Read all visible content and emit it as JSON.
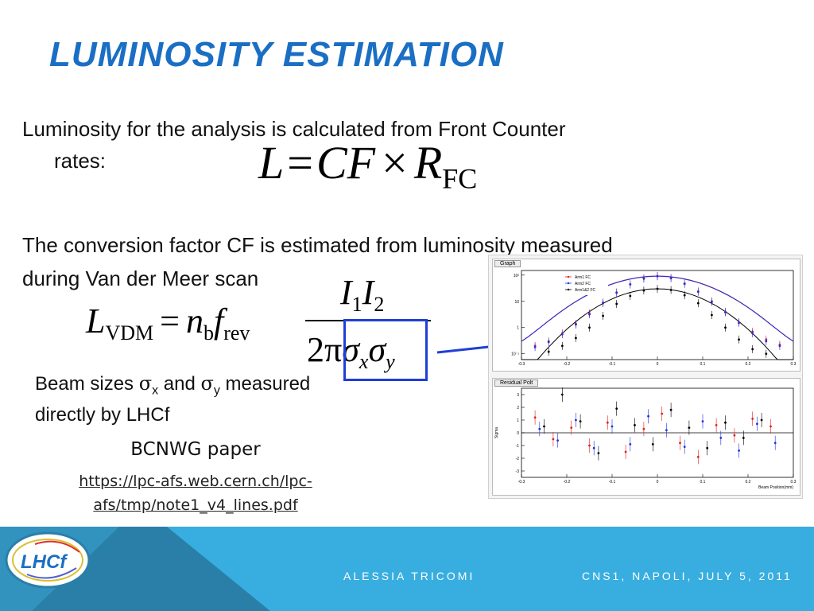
{
  "slide": {
    "title": "LUMINOSITY ESTIMATION",
    "paragraph1_line1": "Luminosity for the analysis is calculated from Front Counter",
    "paragraph1_line2": "rates:",
    "paragraph2_line1": "The conversion factor CF is estimated from luminosity measured",
    "paragraph2_line2": "during Van der Meer scan",
    "beam_sizes_prefix": "Beam sizes ",
    "beam_sizes_sigma_x": "σ",
    "beam_sizes_sub_x": "x",
    "beam_sizes_and": " and ",
    "beam_sizes_sigma_y": "σ",
    "beam_sizes_sub_y": "y",
    "beam_sizes_suffix": " measured",
    "beam_sizes_line2": "directly by LHCf",
    "reference_title": "BCNWG paper",
    "reference_link_line1": "https://lpc-afs.web.cern.ch/lpc-",
    "reference_link_line2": "afs/tmp/note1_v4_lines.pdf"
  },
  "formula1": {
    "L": "L",
    "equals": "=",
    "CF": "CF",
    "times": "×",
    "R": "R",
    "R_sub": "FC"
  },
  "formula2": {
    "L": "L",
    "L_sub": "VDM",
    "equals": "=",
    "n": "n",
    "n_sub": "b",
    "f": "f",
    "f_sub": "rev",
    "numerator_I1": "I",
    "numerator_sub1": "1",
    "numerator_I2": "I",
    "numerator_sub2": "2",
    "denominator_2pi": "2π",
    "sigma_x": "σ",
    "sigma_x_sub": "x",
    "sigma_y": "σ",
    "sigma_y_sub": "y"
  },
  "footer": {
    "author": "ALESSIA TRICOMI",
    "event": "CNS1, NAPOLI, JULY 5, 2011",
    "logo_text": "LHCf"
  },
  "colors": {
    "title": "#1a6fc4",
    "footer_band": "#38aee0",
    "footer_triangle_dark": "#2a7fa8",
    "highlight_box": "#1f3fd6",
    "arm1": "#e02020",
    "arm2": "#2030e0",
    "arm12": "#000000"
  },
  "chart_data": [
    {
      "type": "scatter",
      "title": "Graph",
      "legend": [
        "Arm1 FC",
        "Arm2 FC",
        "Arm1&2 FC"
      ],
      "legend_position": "top-left",
      "y_scale": "log",
      "x_ticks": [
        "-0.3",
        "-0.2",
        "-0.1",
        "0",
        "0.1",
        "0.2",
        "0.3"
      ],
      "y_ticks": [
        "10⁻¹",
        "1",
        "10",
        "10²"
      ],
      "xlim": [
        -0.3,
        0.3
      ],
      "ylim": [
        0.06,
        150
      ],
      "series": [
        {
          "name": "Arm1 FC",
          "color": "#e02020",
          "x": [
            -0.27,
            -0.24,
            -0.21,
            -0.18,
            -0.15,
            -0.12,
            -0.09,
            -0.06,
            -0.03,
            0,
            0.03,
            0.06,
            0.09,
            0.12,
            0.15,
            0.18,
            0.21,
            0.24,
            0.27
          ],
          "y": [
            0.2,
            0.3,
            0.6,
            1.4,
            3.5,
            9,
            22,
            45,
            75,
            92,
            78,
            48,
            24,
            10,
            4,
            1.6,
            0.7,
            0.35,
            0.22
          ]
        },
        {
          "name": "Arm2 FC",
          "color": "#2030e0",
          "x": [
            -0.27,
            -0.24,
            -0.21,
            -0.18,
            -0.15,
            -0.12,
            -0.09,
            -0.06,
            -0.03,
            0,
            0.03,
            0.06,
            0.09,
            0.12,
            0.15,
            0.18,
            0.21,
            0.24,
            0.27
          ],
          "y": [
            0.18,
            0.28,
            0.55,
            1.3,
            3.2,
            8.5,
            21,
            44,
            73,
            90,
            76,
            46,
            23,
            9.5,
            3.8,
            1.5,
            0.6,
            0.3,
            0.2
          ]
        },
        {
          "name": "Arm1&2 FC",
          "color": "#000000",
          "x": [
            -0.24,
            -0.21,
            -0.18,
            -0.15,
            -0.12,
            -0.09,
            -0.06,
            -0.03,
            0,
            0.03,
            0.06,
            0.09,
            0.12,
            0.15,
            0.18,
            0.21,
            0.24
          ],
          "y": [
            0.12,
            0.2,
            0.4,
            1,
            2.8,
            8,
            16,
            26,
            30,
            27,
            17,
            8.5,
            3,
            1,
            0.35,
            0.15,
            0.1
          ]
        }
      ]
    },
    {
      "type": "scatter",
      "title": "Residual Polt",
      "ylabel": "Sigma",
      "xlabel": "Beam Position(mm)",
      "x_ticks": [
        "-0.3",
        "-0.2",
        "-0.1",
        "0",
        "0.1",
        "0.2",
        "0.3"
      ],
      "y_ticks": [
        "-3",
        "-2",
        "-1",
        "0",
        "1",
        "2",
        "3"
      ],
      "xlim": [
        -0.3,
        0.3
      ],
      "ylim": [
        -3.5,
        3.5
      ],
      "series": [
        {
          "name": "Arm1 FC",
          "color": "#e02020",
          "x": [
            -0.27,
            -0.23,
            -0.19,
            -0.15,
            -0.11,
            -0.07,
            -0.03,
            0.01,
            0.05,
            0.09,
            0.13,
            0.17,
            0.21,
            0.25
          ],
          "y": [
            1.2,
            -0.5,
            0.4,
            -1.0,
            0.8,
            -1.5,
            0.3,
            1.5,
            -0.8,
            -1.9,
            0.6,
            -0.2,
            1.1,
            0.5
          ]
        },
        {
          "name": "Arm2 FC",
          "color": "#2030e0",
          "x": [
            -0.26,
            -0.22,
            -0.18,
            -0.14,
            -0.1,
            -0.06,
            -0.02,
            0.02,
            0.06,
            0.1,
            0.14,
            0.18,
            0.22,
            0.26
          ],
          "y": [
            0.3,
            -0.6,
            1.0,
            -1.2,
            0.5,
            -0.9,
            1.3,
            0.2,
            -1.1,
            0.9,
            -0.4,
            -1.4,
            0.7,
            -0.8
          ]
        },
        {
          "name": "Arm1&2 FC",
          "color": "#000000",
          "x": [
            -0.25,
            -0.21,
            -0.17,
            -0.13,
            -0.09,
            -0.05,
            -0.01,
            0.03,
            0.07,
            0.11,
            0.15,
            0.19,
            0.23
          ],
          "y": [
            0.5,
            3.0,
            0.9,
            -1.6,
            1.9,
            0.6,
            -0.9,
            1.8,
            0.4,
            -1.2,
            0.8,
            -0.4,
            1.0
          ]
        }
      ]
    }
  ]
}
